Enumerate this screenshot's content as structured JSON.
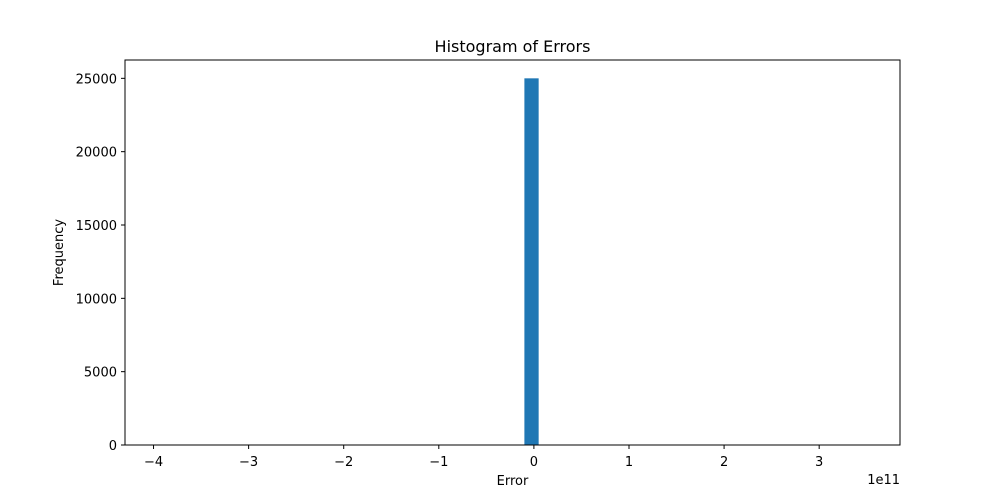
{
  "chart_data": {
    "type": "bar",
    "title": "Histogram of Errors",
    "xlabel": "Error",
    "ylabel": "Frequency",
    "x_offset_text": "1e11",
    "x_scale_factor": 100000000000,
    "xlim": [
      -4.3,
      3.85
    ],
    "ylim": [
      0,
      26250
    ],
    "xticks": [
      {
        "value": -4,
        "label": "−4"
      },
      {
        "value": -3,
        "label": "−3"
      },
      {
        "value": -2,
        "label": "−2"
      },
      {
        "value": -1,
        "label": "−1"
      },
      {
        "value": 0,
        "label": "0"
      },
      {
        "value": 1,
        "label": "1"
      },
      {
        "value": 2,
        "label": "2"
      },
      {
        "value": 3,
        "label": "3"
      }
    ],
    "yticks": [
      {
        "value": 0,
        "label": "0"
      },
      {
        "value": 5000,
        "label": "5000"
      },
      {
        "value": 10000,
        "label": "10000"
      },
      {
        "value": 15000,
        "label": "15000"
      },
      {
        "value": 20000,
        "label": "20000"
      },
      {
        "value": 25000,
        "label": "25000"
      }
    ],
    "bars": [
      {
        "x_start": -0.1,
        "x_end": 0.05,
        "value": 25000
      }
    ],
    "bar_color": "#1f77b4",
    "grid": false,
    "legend": "none"
  }
}
